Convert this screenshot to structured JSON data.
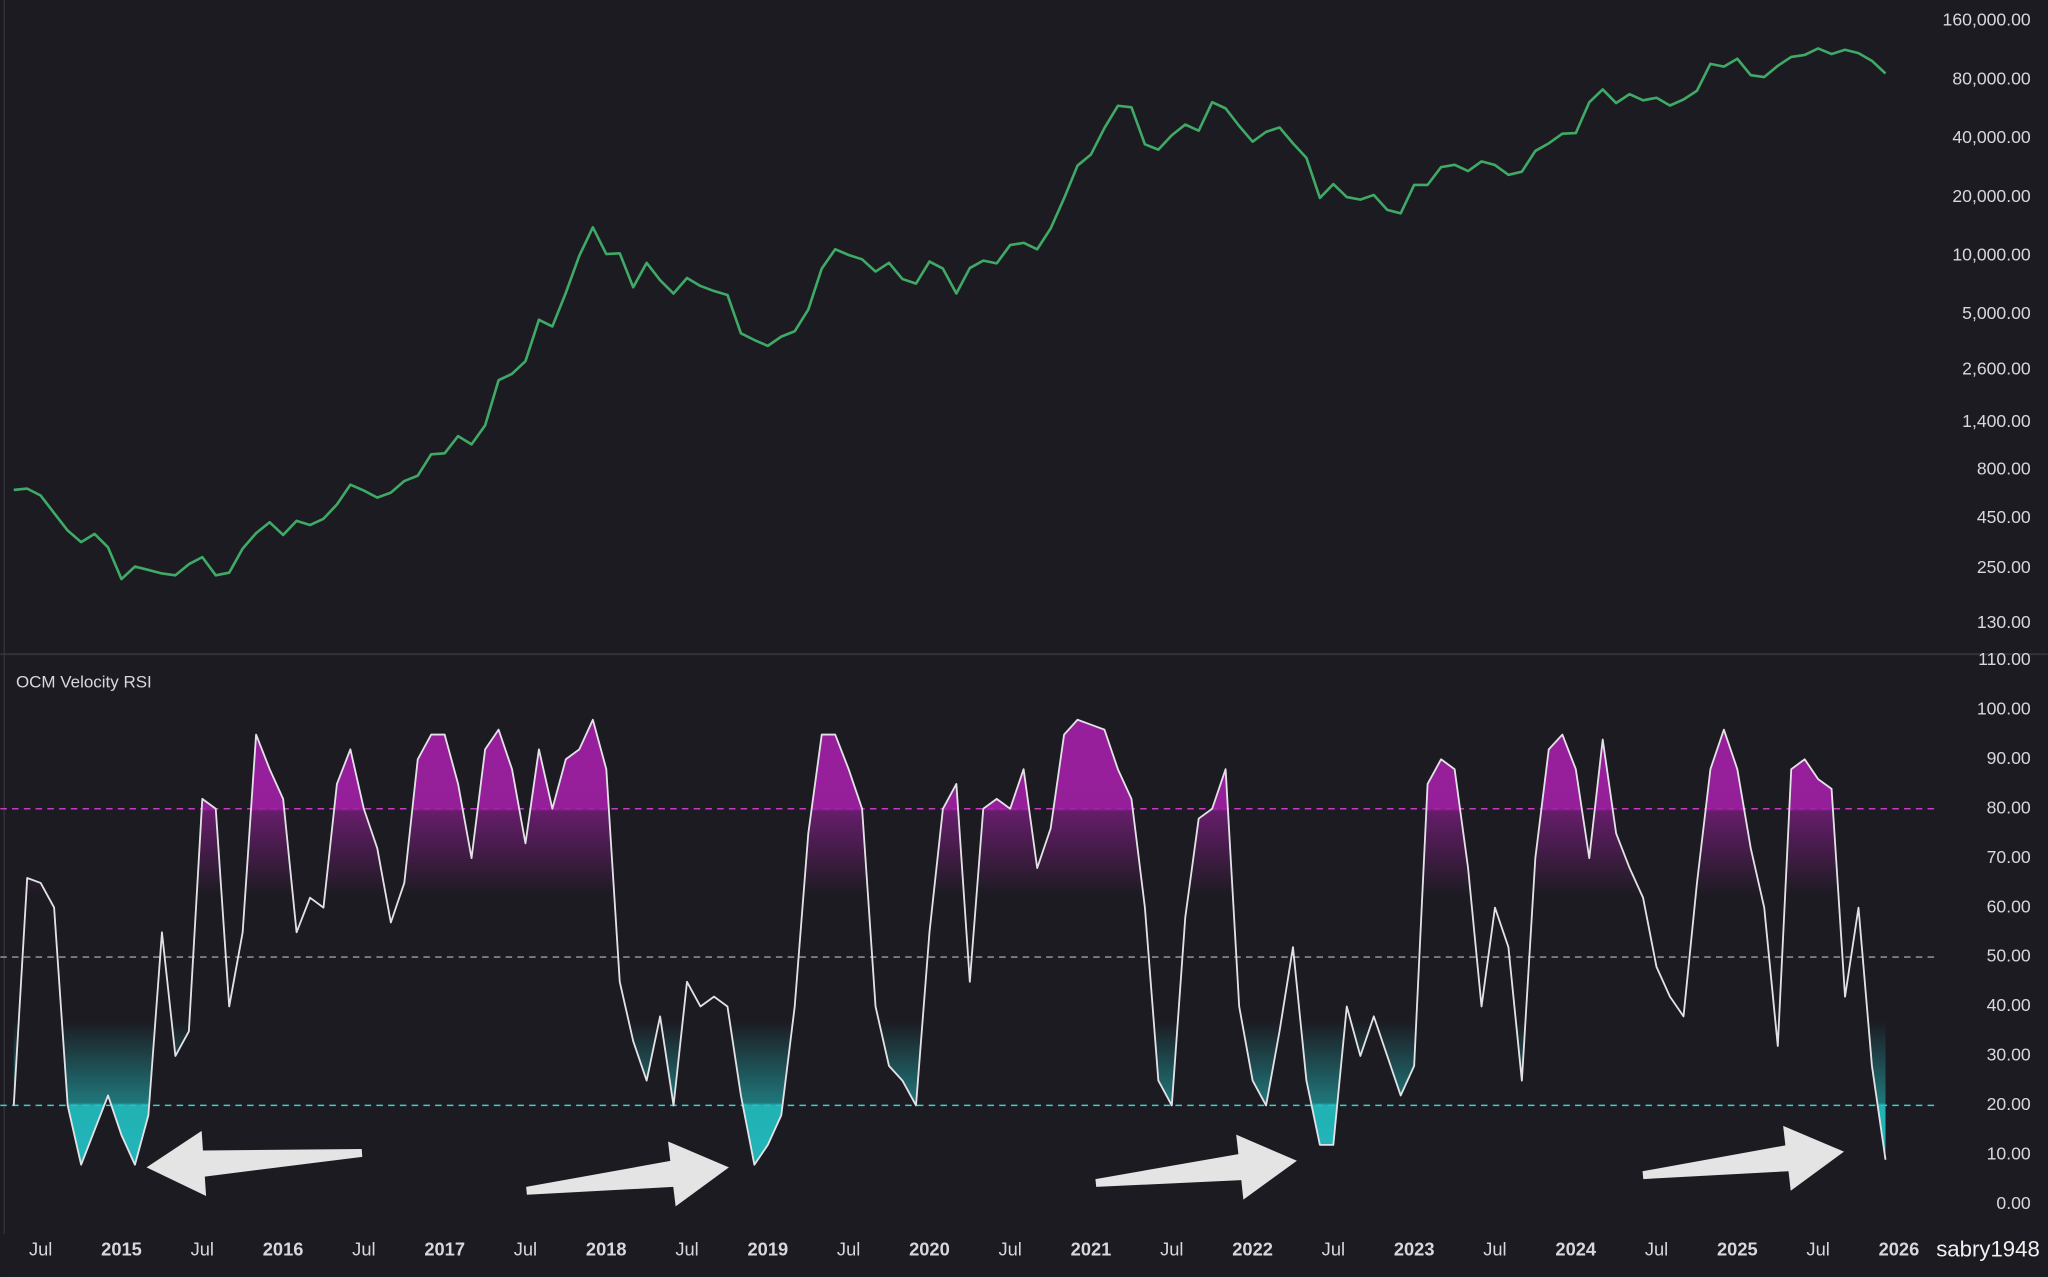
{
  "chart_data": [
    {
      "type": "line",
      "scale": "log",
      "color": "#3faa66",
      "x": [
        "2014-05",
        "2014-06",
        "2014-07",
        "2014-08",
        "2014-09",
        "2014-10",
        "2014-11",
        "2014-12",
        "2015-01",
        "2015-02",
        "2015-03",
        "2015-04",
        "2015-05",
        "2015-06",
        "2015-07",
        "2015-08",
        "2015-09",
        "2015-10",
        "2015-11",
        "2015-12",
        "2016-01",
        "2016-02",
        "2016-03",
        "2016-04",
        "2016-05",
        "2016-06",
        "2016-07",
        "2016-08",
        "2016-09",
        "2016-10",
        "2016-11",
        "2016-12",
        "2017-01",
        "2017-02",
        "2017-03",
        "2017-04",
        "2017-05",
        "2017-06",
        "2017-07",
        "2017-08",
        "2017-09",
        "2017-10",
        "2017-11",
        "2017-12",
        "2018-01",
        "2018-02",
        "2018-03",
        "2018-04",
        "2018-05",
        "2018-06",
        "2018-07",
        "2018-08",
        "2018-09",
        "2018-10",
        "2018-11",
        "2018-12",
        "2019-01",
        "2019-02",
        "2019-03",
        "2019-04",
        "2019-05",
        "2019-06",
        "2019-07",
        "2019-08",
        "2019-09",
        "2019-10",
        "2019-11",
        "2019-12",
        "2020-01",
        "2020-02",
        "2020-03",
        "2020-04",
        "2020-05",
        "2020-06",
        "2020-07",
        "2020-08",
        "2020-09",
        "2020-10",
        "2020-11",
        "2020-12",
        "2021-01",
        "2021-02",
        "2021-03",
        "2021-04",
        "2021-05",
        "2021-06",
        "2021-07",
        "2021-08",
        "2021-09",
        "2021-10",
        "2021-11",
        "2021-12",
        "2022-01",
        "2022-02",
        "2022-03",
        "2022-04",
        "2022-05",
        "2022-06",
        "2022-07",
        "2022-08",
        "2022-09",
        "2022-10",
        "2022-11",
        "2022-12",
        "2023-01",
        "2023-02",
        "2023-03",
        "2023-04",
        "2023-05",
        "2023-06",
        "2023-07",
        "2023-08",
        "2023-09",
        "2023-10",
        "2023-11",
        "2023-12",
        "2024-01",
        "2024-02",
        "2024-03",
        "2024-04",
        "2024-05",
        "2024-06",
        "2024-07",
        "2024-08",
        "2024-09",
        "2024-10",
        "2024-11",
        "2024-12",
        "2025-01",
        "2025-02",
        "2025-03",
        "2025-04",
        "2025-05",
        "2025-06",
        "2025-07",
        "2025-08",
        "2025-09",
        "2025-10",
        "2025-11",
        "2025-12"
      ],
      "values": [
        630,
        640,
        590,
        480,
        390,
        340,
        375,
        320,
        220,
        255,
        245,
        235,
        230,
        262,
        285,
        230,
        237,
        315,
        378,
        430,
        370,
        437,
        416,
        448,
        530,
        670,
        625,
        575,
        610,
        700,
        745,
        960,
        970,
        1190,
        1080,
        1350,
        2300,
        2480,
        2880,
        4700,
        4340,
        6450,
        10000,
        14000,
        10200,
        10300,
        6900,
        9200,
        7500,
        6400,
        7700,
        7000,
        6600,
        6300,
        4000,
        3700,
        3450,
        3850,
        4100,
        5300,
        8600,
        10800,
        10100,
        9600,
        8300,
        9200,
        7600,
        7200,
        9350,
        8600,
        6400,
        8650,
        9450,
        9150,
        11350,
        11650,
        10800,
        13800,
        19700,
        29000,
        33100,
        45200,
        58800,
        57700,
        37300,
        35000,
        41500,
        47100,
        43800,
        61300,
        57000,
        46300,
        38500,
        43200,
        45500,
        37700,
        31800,
        19800,
        23300,
        20000,
        19400,
        20500,
        17200,
        16500,
        23100,
        23100,
        28500,
        29300,
        27200,
        30500,
        29200,
        26000,
        27000,
        34500,
        37700,
        42300,
        42600,
        61200,
        71300,
        60700,
        67500,
        62700,
        64600,
        59000,
        63300,
        70200,
        96400,
        93400,
        102400,
        84400,
        82500,
        94200,
        104600,
        107100,
        115700,
        108200,
        114000,
        109500,
        100000,
        86000
      ],
      "xlim": [
        "2014-04",
        "2026-04"
      ],
      "ylim": [
        92,
        205000
      ],
      "yticks": [
        {
          "value": 130,
          "label": "130.00"
        },
        {
          "value": 250,
          "label": "250.00"
        },
        {
          "value": 450,
          "label": "450.00"
        },
        {
          "value": 800,
          "label": "800.00"
        },
        {
          "value": 1400,
          "label": "1,400.00"
        },
        {
          "value": 2600,
          "label": "2,600.00"
        },
        {
          "value": 5000,
          "label": "5,000.00"
        },
        {
          "value": 10000,
          "label": "10,000.00"
        },
        {
          "value": 20000,
          "label": "20,000.00"
        },
        {
          "value": 40000,
          "label": "40,000.00"
        },
        {
          "value": 80000,
          "label": "80,000.00"
        },
        {
          "value": 160000,
          "label": "160,000.00"
        }
      ]
    },
    {
      "type": "line",
      "title": "OCM Velocity RSI",
      "color": "#e2e2e6",
      "x": [
        "2014-05",
        "2014-06",
        "2014-07",
        "2014-08",
        "2014-09",
        "2014-10",
        "2014-11",
        "2014-12",
        "2015-01",
        "2015-02",
        "2015-03",
        "2015-04",
        "2015-05",
        "2015-06",
        "2015-07",
        "2015-08",
        "2015-09",
        "2015-10",
        "2015-11",
        "2015-12",
        "2016-01",
        "2016-02",
        "2016-03",
        "2016-04",
        "2016-05",
        "2016-06",
        "2016-07",
        "2016-08",
        "2016-09",
        "2016-10",
        "2016-11",
        "2016-12",
        "2017-01",
        "2017-02",
        "2017-03",
        "2017-04",
        "2017-05",
        "2017-06",
        "2017-07",
        "2017-08",
        "2017-09",
        "2017-10",
        "2017-11",
        "2017-12",
        "2018-01",
        "2018-02",
        "2018-03",
        "2018-04",
        "2018-05",
        "2018-06",
        "2018-07",
        "2018-08",
        "2018-09",
        "2018-10",
        "2018-11",
        "2018-12",
        "2019-01",
        "2019-02",
        "2019-03",
        "2019-04",
        "2019-05",
        "2019-06",
        "2019-07",
        "2019-08",
        "2019-09",
        "2019-10",
        "2019-11",
        "2019-12",
        "2020-01",
        "2020-02",
        "2020-03",
        "2020-04",
        "2020-05",
        "2020-06",
        "2020-07",
        "2020-08",
        "2020-09",
        "2020-10",
        "2020-11",
        "2020-12",
        "2021-01",
        "2021-02",
        "2021-03",
        "2021-04",
        "2021-05",
        "2021-06",
        "2021-07",
        "2021-08",
        "2021-09",
        "2021-10",
        "2021-11",
        "2021-12",
        "2022-01",
        "2022-02",
        "2022-03",
        "2022-04",
        "2022-05",
        "2022-06",
        "2022-07",
        "2022-08",
        "2022-09",
        "2022-10",
        "2022-11",
        "2022-12",
        "2023-01",
        "2023-02",
        "2023-03",
        "2023-04",
        "2023-05",
        "2023-06",
        "2023-07",
        "2023-08",
        "2023-09",
        "2023-10",
        "2023-11",
        "2023-12",
        "2024-01",
        "2024-02",
        "2024-03",
        "2024-04",
        "2024-05",
        "2024-06",
        "2024-07",
        "2024-08",
        "2024-09",
        "2024-10",
        "2024-11",
        "2024-12",
        "2025-01",
        "2025-02",
        "2025-03",
        "2025-04",
        "2025-05",
        "2025-06",
        "2025-07",
        "2025-08",
        "2025-09",
        "2025-10",
        "2025-11",
        "2025-12"
      ],
      "values": [
        20,
        66,
        65,
        60,
        20,
        8,
        15,
        22,
        14,
        8,
        18,
        55,
        30,
        35,
        82,
        80,
        40,
        55,
        95,
        88,
        82,
        55,
        62,
        60,
        85,
        92,
        80,
        72,
        57,
        65,
        90,
        95,
        95,
        85,
        70,
        92,
        96,
        88,
        73,
        92,
        80,
        90,
        92,
        98,
        88,
        45,
        33,
        25,
        38,
        20,
        45,
        40,
        42,
        40,
        22,
        8,
        12,
        18,
        40,
        75,
        95,
        95,
        88,
        80,
        40,
        28,
        25,
        20,
        55,
        80,
        85,
        45,
        80,
        82,
        80,
        88,
        68,
        76,
        95,
        98,
        97,
        96,
        88,
        82,
        60,
        25,
        20,
        58,
        78,
        80,
        88,
        40,
        25,
        20,
        35,
        52,
        25,
        12,
        12,
        40,
        30,
        38,
        30,
        22,
        28,
        85,
        90,
        88,
        68,
        40,
        60,
        52,
        25,
        70,
        92,
        95,
        88,
        70,
        94,
        75,
        68,
        62,
        48,
        42,
        38,
        65,
        88,
        96,
        88,
        72,
        60,
        32,
        88,
        90,
        86,
        84,
        42,
        60,
        28,
        9
      ],
      "xlim": [
        "2014-04",
        "2026-04"
      ],
      "ylim": [
        -6,
        111
      ],
      "yticks": [
        {
          "value": 0,
          "label": "0.00"
        },
        {
          "value": 10,
          "label": "10.00"
        },
        {
          "value": 20,
          "label": "20.00"
        },
        {
          "value": 30,
          "label": "30.00"
        },
        {
          "value": 40,
          "label": "40.00"
        },
        {
          "value": 50,
          "label": "50.00"
        },
        {
          "value": 60,
          "label": "60.00"
        },
        {
          "value": 70,
          "label": "70.00"
        },
        {
          "value": 80,
          "label": "80.00"
        },
        {
          "value": 90,
          "label": "90.00"
        },
        {
          "value": 100,
          "label": "100.00"
        },
        {
          "value": 110,
          "label": "110.00"
        }
      ],
      "levels": [
        {
          "value": 80,
          "color": "#c43cc4"
        },
        {
          "value": 50,
          "color": "#8a8a90"
        },
        {
          "value": 20,
          "color": "#3ccfd0"
        }
      ],
      "fill_colors": {
        "above": "#a21fa6",
        "below": "#22c2c4"
      },
      "xticks": [
        {
          "value": "2014-07",
          "label": "Jul"
        },
        {
          "value": "2015-01",
          "label": "2015"
        },
        {
          "value": "2015-07",
          "label": "Jul"
        },
        {
          "value": "2016-01",
          "label": "2016"
        },
        {
          "value": "2016-07",
          "label": "Jul"
        },
        {
          "value": "2017-01",
          "label": "2017"
        },
        {
          "value": "2017-07",
          "label": "Jul"
        },
        {
          "value": "2018-01",
          "label": "2018"
        },
        {
          "value": "2018-07",
          "label": "Jul"
        },
        {
          "value": "2019-01",
          "label": "2019"
        },
        {
          "value": "2019-07",
          "label": "Jul"
        },
        {
          "value": "2020-01",
          "label": "2020"
        },
        {
          "value": "2020-07",
          "label": "Jul"
        },
        {
          "value": "2021-01",
          "label": "2021"
        },
        {
          "value": "2021-07",
          "label": "Jul"
        },
        {
          "value": "2022-01",
          "label": "2022"
        },
        {
          "value": "2022-07",
          "label": "Jul"
        },
        {
          "value": "2023-01",
          "label": "2023"
        },
        {
          "value": "2023-07",
          "label": "Jul"
        },
        {
          "value": "2024-01",
          "label": "2024"
        },
        {
          "value": "2024-07",
          "label": "Jul"
        },
        {
          "value": "2025-01",
          "label": "2025"
        },
        {
          "value": "2025-07",
          "label": "Jul"
        },
        {
          "value": "2026-01",
          "label": "2026"
        }
      ]
    }
  ],
  "watermark": "sabry1948"
}
